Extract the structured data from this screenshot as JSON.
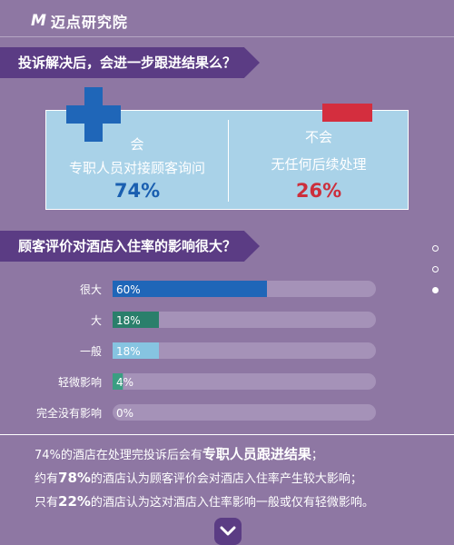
{
  "header": {
    "logo_mark": "M",
    "logo_text": "迈点研究院"
  },
  "section1": {
    "title": "投诉解决后，会进一步跟进结果么？",
    "yes": {
      "label": "会",
      "description": "专职人员对接顾客询问",
      "percent": "74%"
    },
    "no": {
      "label": "不会",
      "description": "无任何后续处理",
      "percent": "26%"
    }
  },
  "section2": {
    "title": "顾客评价对酒店入住率的影响很大？"
  },
  "chart_data": {
    "type": "bar",
    "orientation": "horizontal",
    "categories": [
      "很大",
      "大",
      "一般",
      "轻微影响",
      "完全没有影响"
    ],
    "values": [
      60,
      18,
      18,
      4,
      0
    ],
    "value_labels": [
      "60%",
      "18%",
      "18%",
      "4%",
      "0%"
    ],
    "xlim": [
      0,
      100
    ],
    "colors": [
      "#1f66b8",
      "#2a7f6b",
      "#86c4e1",
      "#3a9e82",
      "#7a6490"
    ],
    "track_color": "#a592b8",
    "grid": false
  },
  "summary": {
    "line1_a": "74%的酒店在处理完投诉后会有",
    "line1_b": "专职人员跟进结果",
    "line1_c": "；",
    "line2_a": "约有",
    "line2_b": "78%",
    "line2_c": "的酒店认为顾客评价会对酒店入住率产生较大影响；",
    "line3_a": "只有",
    "line3_b": "22%",
    "line3_c": "的酒店认为这对酒店入住率影响一般或仅有轻微影响。"
  },
  "icons": {
    "yes": "plus-icon",
    "no": "minus-icon",
    "next": "chevron-down-icon"
  }
}
